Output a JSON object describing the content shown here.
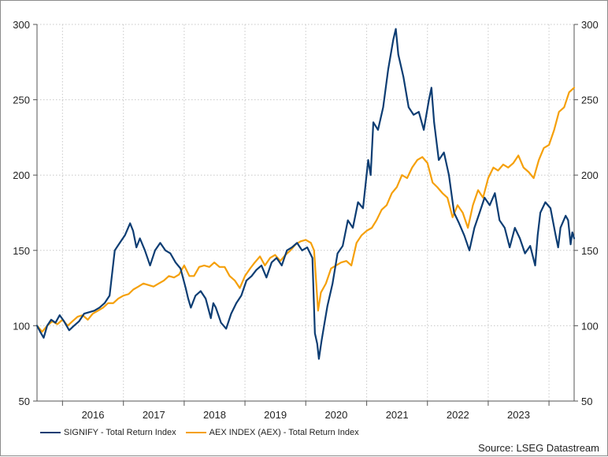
{
  "chart_data": {
    "type": "line",
    "x_axis": {
      "type": "date",
      "range": [
        "2015-08-01",
        "2024-05-31"
      ],
      "tick_labels": [
        {
          "label": "2016",
          "date": "2016-01-01"
        },
        {
          "label": "2017",
          "date": "2017-01-01"
        },
        {
          "label": "2018",
          "date": "2018-01-01"
        },
        {
          "label": "2019",
          "date": "2019-01-01"
        },
        {
          "label": "2020",
          "date": "2020-01-01"
        },
        {
          "label": "2021",
          "date": "2021-01-01"
        },
        {
          "label": "2022",
          "date": "2022-01-01"
        },
        {
          "label": "2023",
          "date": "2023-01-01"
        }
      ]
    },
    "y_axis": {
      "range": [
        50,
        300
      ],
      "ticks": [
        "50",
        "100",
        "150",
        "200",
        "250",
        "300"
      ],
      "labels_both_sides": true
    },
    "grid": true,
    "legend_position": "bottom-left",
    "series": [
      {
        "name": "SIGNIFY - Total Return Index",
        "color": "#0d3d73",
        "points": [
          [
            "2015-08-01",
            100
          ],
          [
            "2015-08-20",
            96
          ],
          [
            "2015-09-10",
            92
          ],
          [
            "2015-10-01",
            100
          ],
          [
            "2015-10-25",
            104
          ],
          [
            "2015-11-20",
            102
          ],
          [
            "2015-12-15",
            107
          ],
          [
            "2016-01-10",
            103
          ],
          [
            "2016-02-10",
            97
          ],
          [
            "2016-03-10",
            100
          ],
          [
            "2016-04-10",
            103
          ],
          [
            "2016-05-10",
            108
          ],
          [
            "2016-06-10",
            109
          ],
          [
            "2016-07-10",
            110
          ],
          [
            "2016-08-10",
            112
          ],
          [
            "2016-09-10",
            115
          ],
          [
            "2016-10-10",
            120
          ],
          [
            "2016-11-10",
            150
          ],
          [
            "2016-12-10",
            155
          ],
          [
            "2017-01-10",
            160
          ],
          [
            "2017-02-10",
            168
          ],
          [
            "2017-02-28",
            163
          ],
          [
            "2017-03-20",
            152
          ],
          [
            "2017-04-10",
            158
          ],
          [
            "2017-05-10",
            150
          ],
          [
            "2017-06-10",
            140
          ],
          [
            "2017-07-10",
            150
          ],
          [
            "2017-08-10",
            155
          ],
          [
            "2017-09-10",
            150
          ],
          [
            "2017-10-10",
            148
          ],
          [
            "2017-11-10",
            142
          ],
          [
            "2017-12-10",
            138
          ],
          [
            "2018-01-10",
            125
          ],
          [
            "2018-01-25",
            118
          ],
          [
            "2018-02-10",
            112
          ],
          [
            "2018-03-10",
            120
          ],
          [
            "2018-04-10",
            123
          ],
          [
            "2018-05-10",
            118
          ],
          [
            "2018-06-10",
            105
          ],
          [
            "2018-06-25",
            115
          ],
          [
            "2018-07-10",
            112
          ],
          [
            "2018-08-10",
            102
          ],
          [
            "2018-09-10",
            98
          ],
          [
            "2018-10-10",
            108
          ],
          [
            "2018-11-10",
            115
          ],
          [
            "2018-12-10",
            120
          ],
          [
            "2019-01-10",
            130
          ],
          [
            "2019-02-10",
            133
          ],
          [
            "2019-03-10",
            137
          ],
          [
            "2019-04-10",
            140
          ],
          [
            "2019-05-10",
            132
          ],
          [
            "2019-06-10",
            142
          ],
          [
            "2019-07-10",
            145
          ],
          [
            "2019-08-10",
            140
          ],
          [
            "2019-09-10",
            150
          ],
          [
            "2019-10-10",
            152
          ],
          [
            "2019-11-10",
            155
          ],
          [
            "2019-12-10",
            150
          ],
          [
            "2020-01-10",
            152
          ],
          [
            "2020-02-10",
            145
          ],
          [
            "2020-02-25",
            95
          ],
          [
            "2020-03-10",
            88
          ],
          [
            "2020-03-20",
            78
          ],
          [
            "2020-04-05",
            90
          ],
          [
            "2020-04-20",
            100
          ],
          [
            "2020-05-10",
            113
          ],
          [
            "2020-06-10",
            128
          ],
          [
            "2020-07-10",
            148
          ],
          [
            "2020-08-10",
            153
          ],
          [
            "2020-09-10",
            170
          ],
          [
            "2020-10-10",
            165
          ],
          [
            "2020-11-10",
            182
          ],
          [
            "2020-12-10",
            178
          ],
          [
            "2021-01-10",
            210
          ],
          [
            "2021-01-25",
            200
          ],
          [
            "2021-02-10",
            235
          ],
          [
            "2021-03-10",
            230
          ],
          [
            "2021-04-10",
            245
          ],
          [
            "2021-05-10",
            270
          ],
          [
            "2021-06-10",
            290
          ],
          [
            "2021-06-25",
            297
          ],
          [
            "2021-07-10",
            280
          ],
          [
            "2021-08-10",
            265
          ],
          [
            "2021-09-10",
            245
          ],
          [
            "2021-10-10",
            240
          ],
          [
            "2021-11-10",
            242
          ],
          [
            "2021-12-10",
            230
          ],
          [
            "2022-01-10",
            250
          ],
          [
            "2022-01-25",
            258
          ],
          [
            "2022-02-10",
            235
          ],
          [
            "2022-03-10",
            210
          ],
          [
            "2022-04-10",
            215
          ],
          [
            "2022-05-10",
            200
          ],
          [
            "2022-06-10",
            175
          ],
          [
            "2022-07-10",
            168
          ],
          [
            "2022-08-10",
            160
          ],
          [
            "2022-09-10",
            150
          ],
          [
            "2022-10-10",
            165
          ],
          [
            "2022-11-10",
            175
          ],
          [
            "2022-12-10",
            185
          ],
          [
            "2023-01-10",
            180
          ],
          [
            "2023-02-10",
            188
          ],
          [
            "2023-03-10",
            170
          ],
          [
            "2023-04-10",
            165
          ],
          [
            "2023-05-10",
            152
          ],
          [
            "2023-06-10",
            165
          ],
          [
            "2023-07-10",
            158
          ],
          [
            "2023-08-10",
            148
          ],
          [
            "2023-09-10",
            153
          ],
          [
            "2023-10-10",
            140
          ],
          [
            "2023-10-25",
            160
          ],
          [
            "2023-11-10",
            175
          ],
          [
            "2023-12-10",
            182
          ],
          [
            "2024-01-10",
            178
          ],
          [
            "2024-02-10",
            160
          ],
          [
            "2024-02-25",
            152
          ],
          [
            "2024-03-10",
            165
          ],
          [
            "2024-04-10",
            173
          ],
          [
            "2024-04-25",
            170
          ],
          [
            "2024-05-10",
            154
          ],
          [
            "2024-05-20",
            162
          ],
          [
            "2024-05-31",
            158
          ]
        ]
      },
      {
        "name": "AEX INDEX (AEX) - Total Return Index",
        "color": "#f5a00a",
        "points": [
          [
            "2015-08-01",
            100
          ],
          [
            "2015-09-01",
            96
          ],
          [
            "2015-10-01",
            100
          ],
          [
            "2015-11-01",
            103
          ],
          [
            "2015-12-01",
            101
          ],
          [
            "2016-01-01",
            104
          ],
          [
            "2016-02-01",
            100
          ],
          [
            "2016-03-01",
            103
          ],
          [
            "2016-04-01",
            106
          ],
          [
            "2016-05-01",
            107
          ],
          [
            "2016-06-01",
            104
          ],
          [
            "2016-07-01",
            108
          ],
          [
            "2016-08-01",
            110
          ],
          [
            "2016-09-01",
            112
          ],
          [
            "2016-10-01",
            115
          ],
          [
            "2016-11-01",
            115
          ],
          [
            "2016-12-01",
            118
          ],
          [
            "2017-01-01",
            120
          ],
          [
            "2017-02-01",
            121
          ],
          [
            "2017-03-01",
            124
          ],
          [
            "2017-04-01",
            126
          ],
          [
            "2017-05-01",
            128
          ],
          [
            "2017-06-01",
            127
          ],
          [
            "2017-07-01",
            126
          ],
          [
            "2017-08-01",
            128
          ],
          [
            "2017-09-01",
            130
          ],
          [
            "2017-10-01",
            133
          ],
          [
            "2017-11-01",
            132
          ],
          [
            "2017-12-01",
            134
          ],
          [
            "2018-01-01",
            140
          ],
          [
            "2018-02-01",
            133
          ],
          [
            "2018-03-01",
            133
          ],
          [
            "2018-04-01",
            139
          ],
          [
            "2018-05-01",
            140
          ],
          [
            "2018-06-01",
            139
          ],
          [
            "2018-07-01",
            142
          ],
          [
            "2018-08-01",
            139
          ],
          [
            "2018-09-01",
            139
          ],
          [
            "2018-10-01",
            133
          ],
          [
            "2018-11-01",
            130
          ],
          [
            "2018-12-01",
            125
          ],
          [
            "2019-01-01",
            133
          ],
          [
            "2019-02-01",
            138
          ],
          [
            "2019-03-01",
            142
          ],
          [
            "2019-04-01",
            146
          ],
          [
            "2019-05-01",
            140
          ],
          [
            "2019-06-01",
            145
          ],
          [
            "2019-07-01",
            147
          ],
          [
            "2019-08-01",
            143
          ],
          [
            "2019-09-01",
            147
          ],
          [
            "2019-10-01",
            150
          ],
          [
            "2019-11-01",
            154
          ],
          [
            "2019-12-01",
            156
          ],
          [
            "2020-01-01",
            157
          ],
          [
            "2020-02-01",
            155
          ],
          [
            "2020-02-20",
            150
          ],
          [
            "2020-03-15",
            110
          ],
          [
            "2020-04-01",
            122
          ],
          [
            "2020-05-01",
            128
          ],
          [
            "2020-06-01",
            138
          ],
          [
            "2020-07-01",
            140
          ],
          [
            "2020-08-01",
            142
          ],
          [
            "2020-09-01",
            143
          ],
          [
            "2020-10-01",
            140
          ],
          [
            "2020-11-01",
            155
          ],
          [
            "2020-12-01",
            160
          ],
          [
            "2021-01-01",
            163
          ],
          [
            "2021-02-01",
            165
          ],
          [
            "2021-03-01",
            170
          ],
          [
            "2021-04-01",
            177
          ],
          [
            "2021-05-01",
            180
          ],
          [
            "2021-06-01",
            188
          ],
          [
            "2021-07-01",
            192
          ],
          [
            "2021-08-01",
            200
          ],
          [
            "2021-09-01",
            198
          ],
          [
            "2021-10-01",
            205
          ],
          [
            "2021-11-01",
            210
          ],
          [
            "2021-12-01",
            212
          ],
          [
            "2022-01-01",
            208
          ],
          [
            "2022-02-01",
            195
          ],
          [
            "2022-03-01",
            192
          ],
          [
            "2022-04-01",
            188
          ],
          [
            "2022-05-01",
            185
          ],
          [
            "2022-06-01",
            172
          ],
          [
            "2022-07-01",
            180
          ],
          [
            "2022-08-01",
            175
          ],
          [
            "2022-09-01",
            165
          ],
          [
            "2022-10-01",
            180
          ],
          [
            "2022-11-01",
            190
          ],
          [
            "2022-12-01",
            185
          ],
          [
            "2023-01-01",
            198
          ],
          [
            "2023-02-01",
            205
          ],
          [
            "2023-03-01",
            203
          ],
          [
            "2023-04-01",
            207
          ],
          [
            "2023-05-01",
            205
          ],
          [
            "2023-06-01",
            208
          ],
          [
            "2023-07-01",
            213
          ],
          [
            "2023-08-01",
            205
          ],
          [
            "2023-09-01",
            202
          ],
          [
            "2023-10-01",
            198
          ],
          [
            "2023-11-01",
            210
          ],
          [
            "2023-12-01",
            218
          ],
          [
            "2024-01-01",
            220
          ],
          [
            "2024-02-01",
            230
          ],
          [
            "2024-03-01",
            242
          ],
          [
            "2024-04-01",
            245
          ],
          [
            "2024-05-01",
            255
          ],
          [
            "2024-05-31",
            258
          ]
        ]
      }
    ],
    "source": "Source: LSEG Datastream"
  }
}
